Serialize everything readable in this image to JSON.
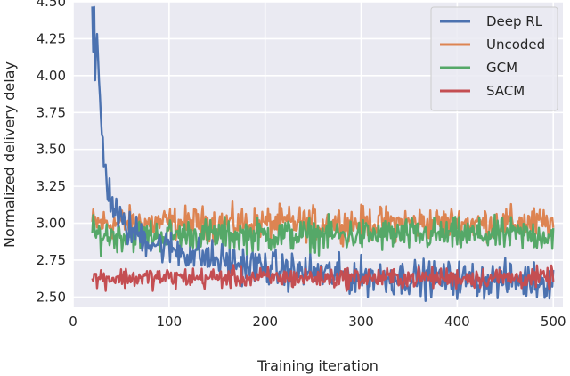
{
  "chart_data": {
    "type": "line",
    "title": "",
    "xlabel": "Training iteration",
    "ylabel": "Normalized delivery delay",
    "xlim": [
      0,
      510
    ],
    "ylim": [
      2.43,
      4.5
    ],
    "xticks": [
      0,
      100,
      200,
      300,
      400,
      500
    ],
    "yticks": [
      2.5,
      2.75,
      3.0,
      3.25,
      3.5,
      3.75,
      4.0,
      4.25,
      4.5
    ],
    "xtick_labels": [
      "0",
      "100",
      "200",
      "300",
      "400",
      "500"
    ],
    "ytick_labels": [
      "2.50",
      "2.75",
      "3.00",
      "3.25",
      "3.50",
      "3.75",
      "4.00",
      "4.25",
      "4.50"
    ],
    "grid": true,
    "background": "#eaeaf2",
    "legend_position": "top-right",
    "x_start": 20,
    "x_end": 500,
    "series": [
      {
        "name": "Deep RL",
        "color": "#4c72b0",
        "keypoints": [
          [
            20,
            4.47
          ],
          [
            21,
            4.1
          ],
          [
            22,
            4.42
          ],
          [
            23,
            3.9
          ],
          [
            25,
            4.3
          ],
          [
            27,
            3.95
          ],
          [
            30,
            3.6
          ],
          [
            33,
            3.4
          ],
          [
            36,
            3.25
          ],
          [
            40,
            3.15
          ],
          [
            45,
            3.08
          ],
          [
            50,
            3.0
          ],
          [
            60,
            2.95
          ],
          [
            70,
            2.92
          ],
          [
            80,
            2.88
          ],
          [
            100,
            2.83
          ],
          [
            120,
            2.8
          ],
          [
            150,
            2.75
          ],
          [
            180,
            2.72
          ],
          [
            220,
            2.68
          ],
          [
            260,
            2.66
          ],
          [
            300,
            2.64
          ],
          [
            400,
            2.62
          ],
          [
            500,
            2.61
          ]
        ],
        "noise": 0.06
      },
      {
        "name": "Uncoded",
        "color": "#dd8452",
        "keypoints": [
          [
            20,
            3.0
          ],
          [
            500,
            3.0
          ]
        ],
        "noise": 0.055
      },
      {
        "name": "GCM",
        "color": "#55a868",
        "keypoints": [
          [
            20,
            2.92
          ],
          [
            500,
            2.92
          ]
        ],
        "noise": 0.055
      },
      {
        "name": "SACM",
        "color": "#c44e52",
        "keypoints": [
          [
            20,
            2.63
          ],
          [
            500,
            2.63
          ]
        ],
        "noise": 0.035
      }
    ]
  }
}
